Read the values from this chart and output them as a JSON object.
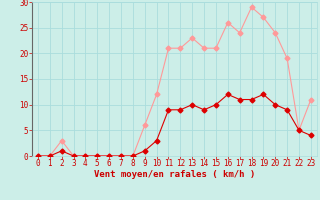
{
  "x": [
    0,
    1,
    2,
    3,
    4,
    5,
    6,
    7,
    8,
    9,
    10,
    11,
    12,
    13,
    14,
    15,
    16,
    17,
    18,
    19,
    20,
    21,
    22,
    23
  ],
  "vent_moyen": [
    0,
    0,
    1,
    0,
    0,
    0,
    0,
    0,
    0,
    1,
    3,
    9,
    9,
    10,
    9,
    10,
    12,
    11,
    11,
    12,
    10,
    9,
    5,
    4
  ],
  "rafales": [
    0,
    0,
    3,
    0,
    0,
    0,
    0,
    0,
    0,
    6,
    12,
    21,
    21,
    23,
    21,
    21,
    26,
    24,
    29,
    27,
    24,
    19,
    5,
    11
  ],
  "bg_color": "#cceee8",
  "grid_color": "#aadddd",
  "line_color_moyen": "#dd0000",
  "line_color_rafales": "#ff9999",
  "xlabel": "Vent moyen/en rafales ( km/h )",
  "ylim": [
    0,
    30
  ],
  "xlim": [
    -0.5,
    23.5
  ],
  "yticks": [
    0,
    5,
    10,
    15,
    20,
    25,
    30
  ],
  "xticks": [
    0,
    1,
    2,
    3,
    4,
    5,
    6,
    7,
    8,
    9,
    10,
    11,
    12,
    13,
    14,
    15,
    16,
    17,
    18,
    19,
    20,
    21,
    22,
    23
  ],
  "tick_fontsize": 5.5,
  "xlabel_fontsize": 6.5
}
